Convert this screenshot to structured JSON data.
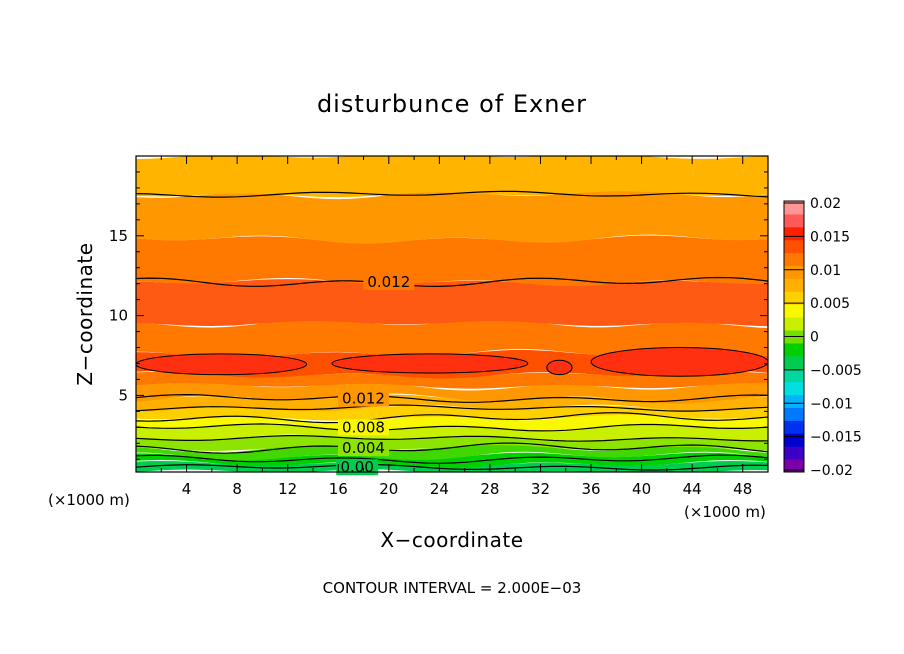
{
  "chart_data": {
    "type": "contour",
    "title": "disturbunce of Exner",
    "xlabel": "X−coordinate",
    "ylabel": "Z−coordinate",
    "x_unit": "(×1000 m)",
    "xlim": [
      0,
      50
    ],
    "ylim": [
      0.2,
      20
    ],
    "x_ticks": [
      "4",
      "8",
      "12",
      "16",
      "20",
      "24",
      "28",
      "32",
      "36",
      "40",
      "44",
      "48"
    ],
    "y_ticks": [
      "5",
      "10",
      "15"
    ],
    "contour_interval_text": "CONTOUR INTERVAL = 2.000E−03",
    "contour_labels": [
      "0.012",
      "0.012",
      "0.008",
      "0.004",
      "0.00"
    ],
    "contour_label_values": [
      0.012,
      0.012,
      0.008,
      0.004,
      0.0
    ],
    "contour_label_z": [
      12.1,
      4.8,
      3.0,
      1.7,
      0.5
    ],
    "colorbar": {
      "ticks": [
        "0.02",
        "0.015",
        "0.01",
        "0.005",
        "0",
        "−0.005",
        "−0.01",
        "−0.015",
        "−0.02"
      ],
      "min": -0.02,
      "max": 0.02,
      "colors": [
        "#7b00a8",
        "#3c00c8",
        "#0000d0",
        "#0030f0",
        "#0078ff",
        "#00b4ff",
        "#00e0e0",
        "#00d8a0",
        "#00cc50",
        "#00d000",
        "#70e000",
        "#c8f000",
        "#f8f800",
        "#ffd000",
        "#ffb000",
        "#ff9800",
        "#ff7800",
        "#ff5000",
        "#ff2000",
        "#ff5a5a",
        "#ff9696"
      ]
    },
    "field_bands": [
      {
        "z": [
          0.2,
          0.7
        ],
        "value": -0.001,
        "color": "#00cc50"
      },
      {
        "z": [
          0.7,
          1.2
        ],
        "value": 0.001,
        "color": "#00d000"
      },
      {
        "z": [
          1.2,
          1.7
        ],
        "value": 0.003,
        "color": "#40d800"
      },
      {
        "z": [
          1.7,
          2.3
        ],
        "value": 0.004,
        "color": "#8ce400"
      },
      {
        "z": [
          2.3,
          3.0
        ],
        "value": 0.006,
        "color": "#c8f000"
      },
      {
        "z": [
          3.0,
          3.6
        ],
        "value": 0.007,
        "color": "#f8f800"
      },
      {
        "z": [
          3.6,
          4.2
        ],
        "value": 0.009,
        "color": "#ffd000"
      },
      {
        "z": [
          4.2,
          4.8
        ],
        "value": 0.01,
        "color": "#ffb000"
      },
      {
        "z": [
          4.8,
          5.6
        ],
        "value": 0.012,
        "color": "#ff9800"
      },
      {
        "z": [
          5.6,
          6.3
        ],
        "value": 0.013,
        "color": "#ff7800"
      },
      {
        "z": [
          6.3,
          7.6
        ],
        "value": 0.015,
        "color": "#ff5000"
      },
      {
        "z": [
          7.6,
          9.5
        ],
        "value": 0.014,
        "color": "#ff7800"
      },
      {
        "z": [
          9.5,
          12.1
        ],
        "value": 0.013,
        "color": "#ff5a14"
      },
      {
        "z": [
          12.1,
          14.8
        ],
        "value": 0.011,
        "color": "#ff7800"
      },
      {
        "z": [
          14.8,
          17.6
        ],
        "value": 0.01,
        "color": "#ff9800"
      },
      {
        "z": [
          17.6,
          20.0
        ],
        "value": 0.009,
        "color": "#ffb400"
      }
    ],
    "contour_lines_z": [
      0.5,
      1.0,
      1.7,
      2.3,
      3.0,
      3.6,
      4.2,
      4.8,
      12.1,
      17.6
    ],
    "blobs": [
      {
        "x": [
          0,
          13.5
        ],
        "z": [
          6.3,
          7.6
        ],
        "color": "#ff3010"
      },
      {
        "x": [
          15.5,
          31
        ],
        "z": [
          6.4,
          7.6
        ],
        "color": "#ff3010"
      },
      {
        "x": [
          32.5,
          34.5
        ],
        "z": [
          6.3,
          7.2
        ],
        "color": "#ff3010"
      },
      {
        "x": [
          36,
          50
        ],
        "z": [
          6.2,
          8.0
        ],
        "color": "#ff3010"
      }
    ]
  }
}
